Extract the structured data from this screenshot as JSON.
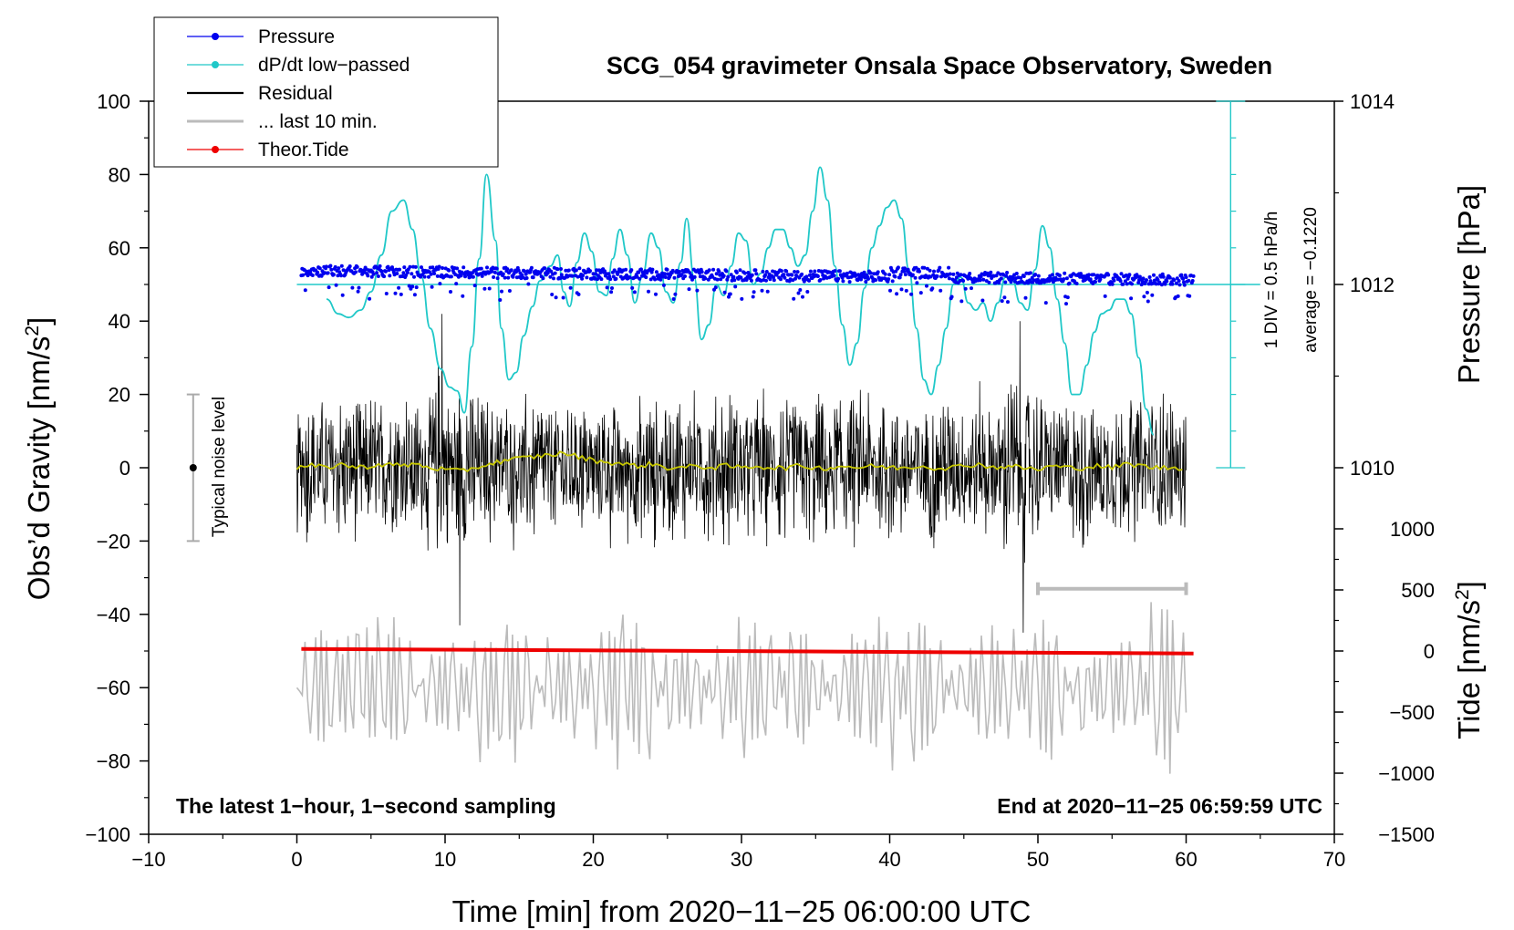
{
  "chart_data": {
    "type": "line",
    "title": "SCG_054 gravimeter Onsala Space Observatory, Sweden",
    "xlabel": "Time [min] from 2020−11−25 06:00:00 UTC",
    "ylabel": "Obs’d Gravity [nm/s",
    "ylabel_sup": "2",
    "ylabel_end": "]",
    "y2label": "Pressure [hPa]",
    "y3label": "Tide [nm/s",
    "y3label_sup": "2",
    "y3label_end": "]",
    "xlim": [
      -10,
      70
    ],
    "ylim": [
      -100,
      100
    ],
    "x_ticks": [
      -10,
      0,
      10,
      20,
      30,
      40,
      50,
      60,
      70
    ],
    "x_tick_labels": [
      "−10",
      "0",
      "10",
      "20",
      "30",
      "40",
      "50",
      "60",
      "70"
    ],
    "y_ticks": [
      -100,
      -80,
      -60,
      -40,
      -20,
      0,
      20,
      40,
      60,
      80,
      100
    ],
    "y_tick_labels": [
      "−100",
      "−80",
      "−60",
      "−40",
      "−20",
      "0",
      "20",
      "40",
      "60",
      "80",
      "100"
    ],
    "pressure_axis": {
      "ticks": [
        1010,
        1012,
        1014
      ],
      "tick_labels": [
        "1010",
        "1012",
        "1014"
      ],
      "gravity_at_1012": 50,
      "gravity_per_hpa": 25
    },
    "tide_axis": {
      "ticks": [
        -1500,
        -1000,
        -500,
        0,
        500,
        1000
      ],
      "tick_labels": [
        "−1500",
        "−1000",
        "−500",
        "0",
        "500",
        "1000"
      ],
      "gravity_at_zero": -50,
      "gravity_per_unit": 0.03333
    },
    "legend": [
      {
        "label": "Pressure",
        "color": "#0000ee",
        "marker": true
      },
      {
        "label": "dP/dt low−passed",
        "color": "#20c8c8",
        "marker": true
      },
      {
        "label": "Residual",
        "color": "#000000",
        "marker": false
      },
      {
        "label": "... last 10 min.",
        "color": "#bbbbbb",
        "marker": false
      },
      {
        "label": "Theor.Tide",
        "color": "#ee0000",
        "marker": true
      }
    ],
    "series": [
      {
        "name": "dP/dt low-passed",
        "color": "#20c8c8",
        "x": [
          2.0,
          2.8,
          3.5,
          4.3,
          5.0,
          5.7,
          6.4,
          7.2,
          7.8,
          8.4,
          9.0,
          9.7,
          10.3,
          10.8,
          11.3,
          11.8,
          12.3,
          12.8,
          13.4,
          13.8,
          14.3,
          14.8,
          15.3,
          15.9,
          16.4,
          17.1,
          17.6,
          18.0,
          18.4,
          18.9,
          19.4,
          19.9,
          20.4,
          20.9,
          21.3,
          21.8,
          22.3,
          22.8,
          23.3,
          23.9,
          24.4,
          24.9,
          25.4,
          25.9,
          26.3,
          26.8,
          27.3,
          27.8,
          28.3,
          28.8,
          29.3,
          29.8,
          30.3,
          30.8,
          31.3,
          31.8,
          32.3,
          32.8,
          33.3,
          33.8,
          34.3,
          34.8,
          35.3,
          35.8,
          36.3,
          36.8,
          37.3,
          37.8,
          38.3,
          38.8,
          39.3,
          39.8,
          40.3,
          40.8,
          41.3,
          41.8,
          42.3,
          42.8,
          43.3,
          43.8,
          44.3,
          44.8,
          45.3,
          45.8,
          46.3,
          46.8,
          47.3,
          47.8,
          48.3,
          48.8,
          49.3,
          49.8,
          50.3,
          50.8,
          51.3,
          51.8,
          52.3,
          52.8,
          53.3,
          53.8,
          54.3,
          54.8,
          55.3,
          55.8,
          56.3,
          56.8,
          57.3,
          57.8
        ],
        "values": [
          46,
          42,
          41,
          43,
          48,
          58,
          70,
          73,
          65,
          52,
          38,
          27,
          22,
          21,
          15,
          33,
          57,
          80,
          62,
          38,
          24,
          26,
          36,
          44,
          51,
          55,
          58,
          48,
          44,
          56,
          64,
          59,
          48,
          47,
          57,
          65,
          58,
          45,
          52,
          64,
          60,
          48,
          45,
          56,
          68,
          52,
          35,
          39,
          50,
          47,
          55,
          64,
          62,
          50,
          53,
          60,
          65,
          65,
          60,
          55,
          58,
          70,
          82,
          73,
          55,
          39,
          28,
          34,
          49,
          60,
          66,
          71,
          73,
          68,
          54,
          38,
          24,
          20,
          28,
          38,
          50,
          52,
          45,
          43,
          45,
          40,
          45,
          52,
          51,
          45,
          43,
          54,
          66,
          60,
          46,
          34,
          20,
          20,
          28,
          37,
          42,
          43,
          46,
          46,
          42,
          30,
          16,
          9
        ]
      },
      {
        "name": "Residual",
        "color": "#000000",
        "x_start": 0,
        "x_end": 60,
        "envelope": 25,
        "spikes": [
          {
            "x": 9.8,
            "v": 42
          },
          {
            "x": 11.0,
            "v": -43
          },
          {
            "x": 48.8,
            "v": 40
          },
          {
            "x": 49.0,
            "v": -45
          }
        ]
      },
      {
        "name": "Residual mean",
        "color": "#c8c800",
        "x": [
          0,
          1,
          2,
          3,
          4,
          5,
          6,
          7,
          8,
          9,
          10,
          11,
          12,
          13,
          14,
          15,
          16,
          17,
          18,
          19,
          20,
          21,
          22,
          23,
          24,
          25,
          26,
          27,
          28,
          29,
          30,
          31,
          32,
          33,
          34,
          35,
          36,
          37,
          38,
          39,
          40,
          41,
          42,
          43,
          44,
          45,
          46,
          47,
          48,
          49,
          50,
          51,
          52,
          53,
          54,
          55,
          56,
          57,
          58,
          59,
          60
        ],
        "values": [
          0,
          0.5,
          0,
          1,
          0,
          0.5,
          1,
          0.5,
          1,
          0,
          -0.5,
          -1,
          0,
          1,
          2,
          2.5,
          3,
          3.5,
          4,
          3,
          2,
          1.5,
          1,
          0.5,
          1,
          0,
          0,
          0.5,
          0,
          0.5,
          0,
          0.5,
          0,
          0,
          0.5,
          0,
          0,
          0.5,
          0,
          0.5,
          0,
          0,
          0.5,
          0,
          0,
          0.5,
          1,
          0,
          0.5,
          0,
          -0.5,
          0.5,
          0,
          0,
          0.5,
          0,
          1,
          0.5,
          0,
          0,
          0
        ]
      },
      {
        "name": "Pressure",
        "color": "#0000ee",
        "x_start": 0.3,
        "x_end": 60.5,
        "hpa_start": 1012.15,
        "hpa_end": 1012.05
      },
      {
        "name": "... last 10 min.",
        "color": "#bbbbbb",
        "x_start": 0,
        "x_end": 60,
        "center": -60,
        "amplitude": 20
      },
      {
        "name": "Theor.Tide",
        "color": "#ee0000",
        "x": [
          0.3,
          60.5
        ],
        "values": [
          17,
          -20
        ]
      }
    ],
    "annotations": {
      "pressure_scale": "1 DIV = 0.5 hPa/h",
      "pressure_average": "average = −0.1220",
      "noise_level": "Typical noise level",
      "noise_bar_range": [
        -20,
        20
      ],
      "noise_bar_x": -7,
      "last10_bar": [
        50,
        60
      ],
      "last10_bar_y": -33,
      "zero_line_hpa": 1012,
      "scale_bar_x": 63,
      "left_note": "The latest 1−hour, 1−second sampling",
      "right_note": "End at 2020−11−25 06:59:59 UTC"
    }
  }
}
